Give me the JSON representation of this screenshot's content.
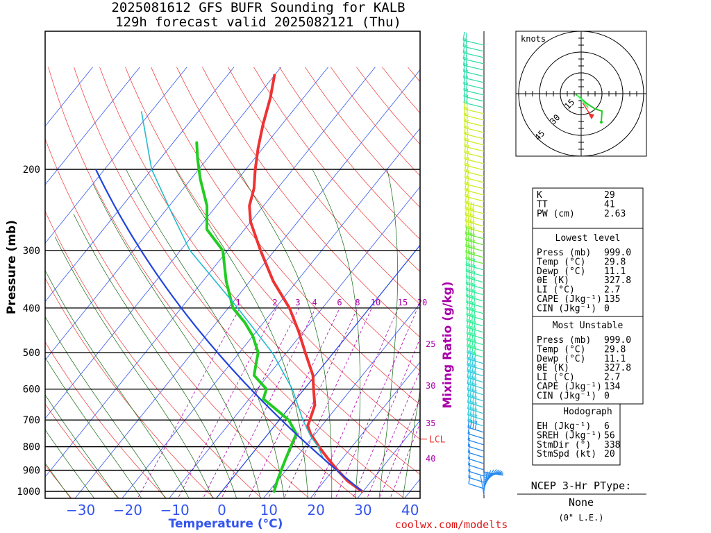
{
  "title": {
    "line1": "2025081612 GFS BUFR Sounding for KALB",
    "line2": "129h forecast valid 2025082121 (Thu)"
  },
  "axes": {
    "ylabel": "Pressure (mb)",
    "xlabel": "Temperature (°C)",
    "mixing_label": "Mixing Ratio (g/kg)",
    "pressure_ticks": [
      "200",
      "300",
      "400",
      "500",
      "600",
      "700",
      "800",
      "900",
      "1000"
    ],
    "temp_ticks": [
      "−30",
      "−20",
      "−10",
      "0",
      "10",
      "20",
      "30",
      "40"
    ],
    "mix_ticks": [
      "1",
      "2",
      "3",
      "4",
      "6",
      "8",
      "10",
      "15",
      "20"
    ],
    "right_mix_ticks": [
      "25",
      "30",
      "35",
      "40"
    ],
    "lcl_label": "LCL"
  },
  "chart_data": {
    "type": "line",
    "x_axis": "Temperature (°C)",
    "y_axis": "Pressure (mb)",
    "y_scale": "log",
    "ylim": [
      1000,
      150
    ],
    "series": [
      {
        "role": "temperature",
        "color": "#ee3333",
        "points": [
          [
            1000,
            29.8
          ],
          [
            950,
            25
          ],
          [
            900,
            21
          ],
          [
            850,
            17
          ],
          [
            800,
            13
          ],
          [
            750,
            9
          ],
          [
            720,
            7
          ],
          [
            700,
            6.5
          ],
          [
            650,
            5
          ],
          [
            600,
            2
          ],
          [
            560,
            -0.5
          ],
          [
            500,
            -6
          ],
          [
            450,
            -11
          ],
          [
            400,
            -17
          ],
          [
            350,
            -25
          ],
          [
            300,
            -33
          ],
          [
            260,
            -40
          ],
          [
            240,
            -43
          ],
          [
            220,
            -45
          ],
          [
            200,
            -48
          ],
          [
            180,
            -51
          ],
          [
            160,
            -54
          ],
          [
            140,
            -57
          ],
          [
            125,
            -60
          ]
        ]
      },
      {
        "role": "dewpoint",
        "color": "#22cc22",
        "points": [
          [
            1000,
            11.1
          ],
          [
            950,
            10
          ],
          [
            900,
            9
          ],
          [
            850,
            8
          ],
          [
            800,
            7
          ],
          [
            750,
            6
          ],
          [
            700,
            2
          ],
          [
            660,
            -3
          ],
          [
            630,
            -7
          ],
          [
            600,
            -8
          ],
          [
            560,
            -13
          ],
          [
            520,
            -15
          ],
          [
            500,
            -16
          ],
          [
            460,
            -20
          ],
          [
            430,
            -24
          ],
          [
            400,
            -29
          ],
          [
            350,
            -35
          ],
          [
            300,
            -41
          ],
          [
            270,
            -48
          ],
          [
            240,
            -52
          ],
          [
            210,
            -58
          ],
          [
            190,
            -62
          ],
          [
            175,
            -65
          ]
        ]
      },
      {
        "role": "parcel-lifted",
        "color": "#22bbcc",
        "points": [
          [
            1000,
            29.8
          ],
          [
            850,
            16
          ],
          [
            800,
            12.8
          ],
          [
            760,
            9.5
          ],
          [
            700,
            5
          ],
          [
            600,
            -2.5
          ],
          [
            500,
            -13
          ],
          [
            400,
            -28
          ],
          [
            300,
            -48
          ],
          [
            250,
            -58
          ],
          [
            200,
            -70
          ],
          [
            150,
            -82
          ]
        ]
      }
    ],
    "lcl": 770
  },
  "indices": {
    "row1": [
      {
        "k": "K",
        "v": "29"
      },
      {
        "k": "TT",
        "v": "41"
      },
      {
        "k": "PW (cm)",
        "v": "2.63"
      }
    ],
    "lowest_title": "Lowest level",
    "lowest": [
      {
        "k": "Press (mb)",
        "v": "999.0"
      },
      {
        "k": "Temp (°C)",
        "v": "29.8"
      },
      {
        "k": "Dewp (°C)",
        "v": "11.1"
      },
      {
        "k": "θE (K)",
        "v": "327.8"
      },
      {
        "k": "LI (°C)",
        "v": "2.7"
      },
      {
        "k": "CAPE (Jkg⁻¹)",
        "v": "135"
      },
      {
        "k": "CIN (Jkg⁻¹)",
        "v": "0"
      }
    ],
    "mu_title": "Most Unstable",
    "mu": [
      {
        "k": "Press (mb)",
        "v": "999.0"
      },
      {
        "k": "Temp (°C)",
        "v": "29.8"
      },
      {
        "k": "Dewp (°C)",
        "v": "11.1"
      },
      {
        "k": "θE (K)",
        "v": "327.8"
      },
      {
        "k": "LI (°C)",
        "v": "2.7"
      },
      {
        "k": "CAPE (Jkg⁻¹)",
        "v": "134"
      },
      {
        "k": "CIN (Jkg⁻¹)",
        "v": "0"
      }
    ],
    "hodo_title": "Hodograph",
    "hodo": [
      {
        "k": "EH (Jkg⁻¹)",
        "v": "6"
      },
      {
        "k": "SREH (Jkg⁻¹)",
        "v": "56"
      },
      {
        "k": "StmDir (°)",
        "v": "338"
      },
      {
        "k": "StmSpd (kt)",
        "v": "20"
      }
    ]
  },
  "hodograph": {
    "units": "knots",
    "ring_labels": [
      "15",
      "30",
      "45"
    ]
  },
  "ptype": {
    "title": "NCEP 3-Hr PType:",
    "value": "None",
    "note": "(0\" L.E.)"
  },
  "footer": "coolwx.com/modelts"
}
